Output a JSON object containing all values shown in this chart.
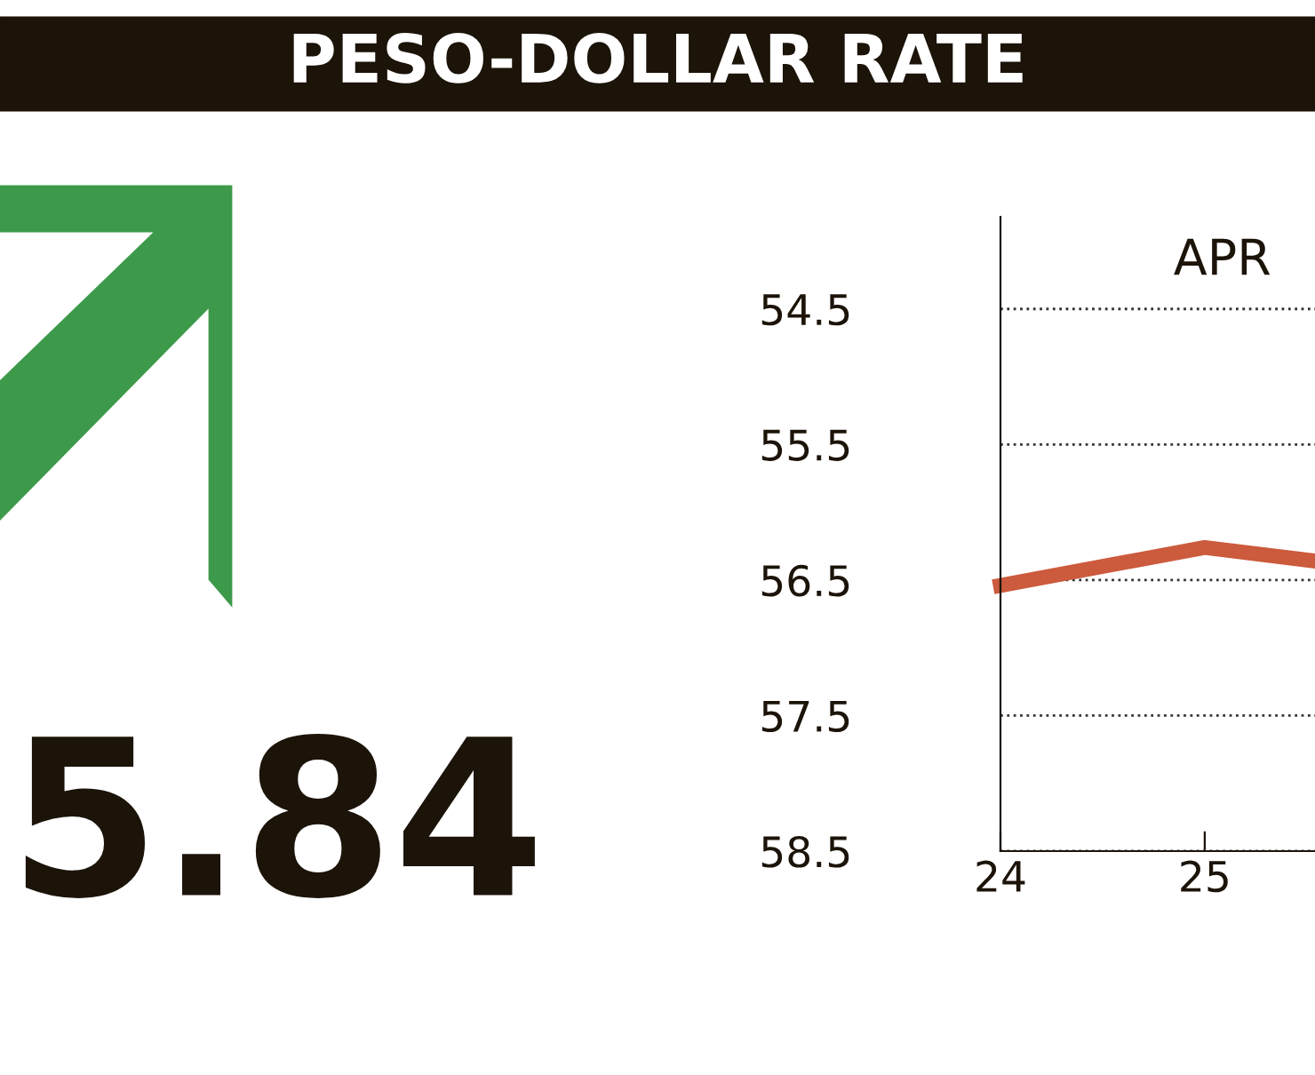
{
  "chart_data": {
    "type": "line",
    "title": "PESO-DOLLAR RATE",
    "annotations": [
      "APR",
      "5.84"
    ],
    "x": [
      24,
      25,
      25.54
    ],
    "series": [
      {
        "color": "#cc5a3c",
        "values": [
          56.54,
          56.26,
          56.36
        ]
      }
    ],
    "xlim": [
      24,
      25.54
    ],
    "xticks": [
      24,
      25
    ],
    "ylim": [
      58.5,
      53.82
    ],
    "yticks": [
      54.5,
      55.5,
      56.5,
      57.5,
      58.5
    ],
    "grid": "y",
    "line_style": "solid",
    "marker": "none"
  }
}
